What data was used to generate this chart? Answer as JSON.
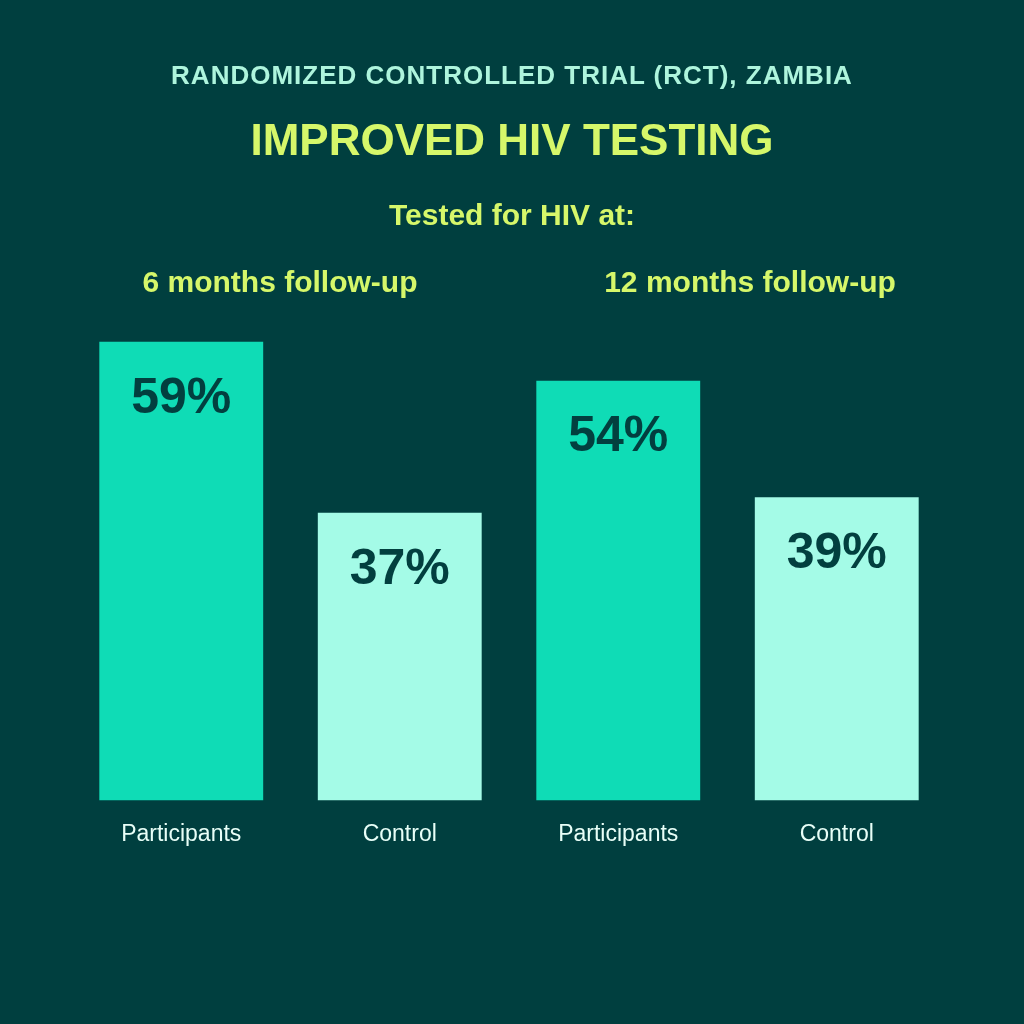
{
  "chart_data": {
    "type": "bar",
    "subtitle": "RANDOMIZED CONTROLLED TRIAL (RCT), ZAMBIA",
    "title": "IMPROVED HIV TESTING",
    "annotations": [
      "Tested for HIV at:",
      "6 months follow-up",
      "12 months follow-up"
    ],
    "categories": [
      "Participants",
      "Control",
      "Participants",
      "Control"
    ],
    "values": [
      59,
      37,
      54,
      39
    ],
    "colors": [
      "#0fdcb6",
      "#a4fbe7",
      "#0fdcb6",
      "#a4fbe7"
    ],
    "value_labels": [
      "59%",
      "37%",
      "54%",
      "39%"
    ],
    "tick_labels": "x"
  }
}
